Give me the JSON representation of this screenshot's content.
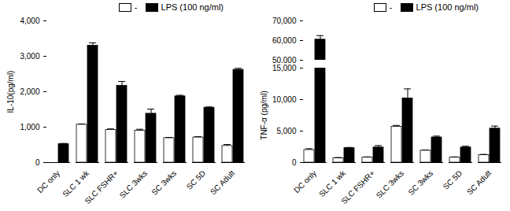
{
  "chart_data": [
    {
      "type": "bar",
      "categories": [
        "DC only",
        "SLC 1 wk",
        "SLC FSHR+",
        "SLC 3wks",
        "SC 3wks",
        "SC 5D",
        "SC Adult"
      ],
      "y_label": "IL-10(pg/ml)",
      "ylim": [
        0,
        4000
      ],
      "yticks": [
        0,
        1000,
        2000,
        3000,
        4000
      ],
      "legend": "top-right",
      "series": [
        {
          "name": "-",
          "color": "#ffffff",
          "values": [
            0,
            1070,
            920,
            900,
            690,
            710,
            470
          ],
          "errors": [
            0,
            20,
            30,
            40,
            20,
            20,
            40
          ]
        },
        {
          "name": "LPS (100 ng/ml)",
          "color": "#000000",
          "values": [
            520,
            3300,
            2170,
            1380,
            1870,
            1550,
            2620
          ],
          "errors": [
            20,
            80,
            120,
            130,
            30,
            20,
            40
          ]
        }
      ]
    },
    {
      "type": "bar",
      "categories": [
        "DC only",
        "SLC 1 wk",
        "SLC FSHR+",
        "SLC 3wks",
        "SC 3wks",
        "SC 5D",
        "SC Adult"
      ],
      "y_label": "TNF-α (pg/ml)",
      "ylim": [
        0,
        70000
      ],
      "yticks": [
        0,
        5000,
        10000,
        15000,
        50000,
        60000,
        70000
      ],
      "y_break": [
        15000,
        50000
      ],
      "legend": "top-right",
      "series": [
        {
          "name": "-",
          "color": "#ffffff",
          "values": [
            2000,
            700,
            800,
            5700,
            1900,
            800,
            1200
          ],
          "errors": [
            200,
            100,
            100,
            200,
            100,
            100,
            100
          ]
        },
        {
          "name": "LPS (100 ng/ml)",
          "color": "#000000",
          "values": [
            60500,
            2300,
            2400,
            10200,
            4000,
            2400,
            5400
          ],
          "errors": [
            2000,
            100,
            300,
            1500,
            200,
            200,
            400
          ]
        }
      ]
    }
  ]
}
